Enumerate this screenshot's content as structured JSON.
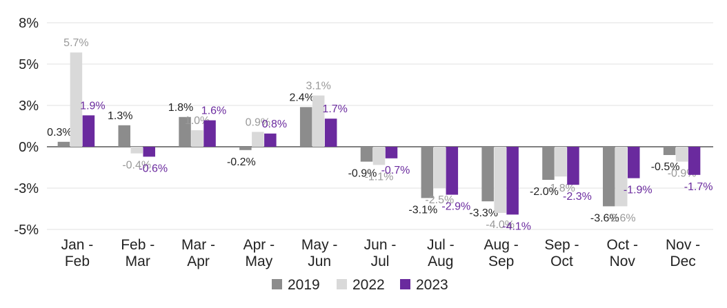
{
  "chart_data": {
    "type": "bar",
    "categories": [
      "Jan - Feb",
      "Feb - Mar",
      "Mar - Apr",
      "Apr - May",
      "May - Jun",
      "Jun - Jul",
      "Jul - Aug",
      "Aug - Sep",
      "Sep - Oct",
      "Oct - Nov",
      "Nov - Dec"
    ],
    "y_ticks": [
      "8%",
      "5%",
      "3%",
      "0%",
      "-3%",
      "-5%"
    ],
    "y_tick_values": [
      7.5,
      5,
      2.5,
      0,
      -2.5,
      -5
    ],
    "ylim": [
      -5,
      7.5
    ],
    "grid": true,
    "legend_position": "bottom",
    "series": [
      {
        "name": "2019",
        "color": "#8c8c8c",
        "label_color": "#222222",
        "values": [
          0.3,
          1.3,
          1.8,
          -0.2,
          2.4,
          -0.9,
          -3.1,
          -3.3,
          -2.0,
          -3.6,
          -0.5
        ],
        "labels": [
          "0.3%",
          "1.3%",
          "1.8%",
          "-0.2%",
          "2.4%",
          "-0.9%",
          "-3.1%",
          "-3.3%",
          "-2.0%",
          "-3.6%",
          "-0.5%"
        ]
      },
      {
        "name": "2022",
        "color": "#d9d9d9",
        "label_color": "#999999",
        "values": [
          5.7,
          -0.4,
          1.0,
          0.9,
          3.1,
          -1.1,
          -2.5,
          -4.0,
          -1.8,
          -3.6,
          -0.9
        ],
        "labels": [
          "5.7%",
          "-0.4%",
          "1.0%",
          "0.9%",
          "3.1%",
          "-1.1%",
          "-2.5%",
          "-4.0%",
          "-1.8%",
          "-3.6%",
          "-0.9%"
        ]
      },
      {
        "name": "2023",
        "color": "#6a2a9e",
        "label_color": "#6a2a9e",
        "values": [
          1.9,
          -0.6,
          1.6,
          0.8,
          1.7,
          -0.7,
          -2.9,
          -4.1,
          -2.3,
          -1.9,
          -1.7
        ],
        "labels": [
          "1.9%",
          "-0.6%",
          "1.6%",
          "0.8%",
          "1.7%",
          "-0.7%",
          "-2.9%",
          "-4.1%",
          "-2.3%",
          "-1.9%",
          "-1.7%"
        ]
      }
    ]
  }
}
